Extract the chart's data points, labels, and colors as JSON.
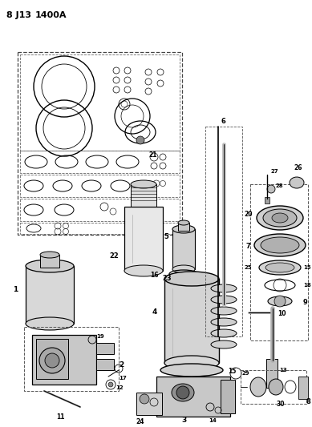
{
  "title": "8J13 1400A",
  "bg_color": "#ffffff",
  "line_color": "#000000",
  "fig_width": 3.89,
  "fig_height": 5.33,
  "dpi": 100
}
